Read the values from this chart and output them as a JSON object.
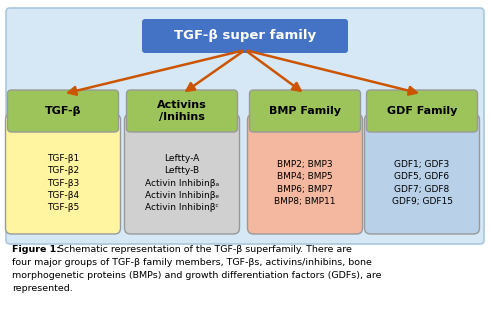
{
  "bg_inner": "#d6e8f5",
  "top_box_color": "#4472c4",
  "top_box_text": "TGF-β super family",
  "top_box_text_color": "#ffffff",
  "header_box_color": "#9dc45a",
  "arrow_color": "#cc5500",
  "categories": [
    "TGF-β",
    "Activins\n/Inihins",
    "BMP Family",
    "GDF Family"
  ],
  "body_colors": [
    "#fff5a0",
    "#d0d0d0",
    "#f4b8a0",
    "#b8d0e8"
  ],
  "body_texts": [
    "TGF-β1\nTGF-β2\nTGF-β3\nTGF-β4\nTGF-β5",
    "Leftty-A\nLeftty-B\nActivin Inhibinβₐ\nActivin Inhibinβₑ\nActivin Inhibinβᶜ",
    "BMP2; BMP3\nBMP4; BMP5\nBMP6; BMP7\nBMP8; BMP11",
    "GDF1; GDF3\nGDF5, GDF6\nGDF7; GDF8\nGDF9; GDF15"
  ],
  "caption_bold": "Figure 1:",
  "caption_rest": " Schematic representation of the TGF-β superfamily. There are four major groups of TGF-β family members, TGF-βs, activins/inhibins, bone morphogenetic proteins (BMPs) and growth differentiation factors (GDFs), are represented.",
  "fig_bg": "#ffffff"
}
